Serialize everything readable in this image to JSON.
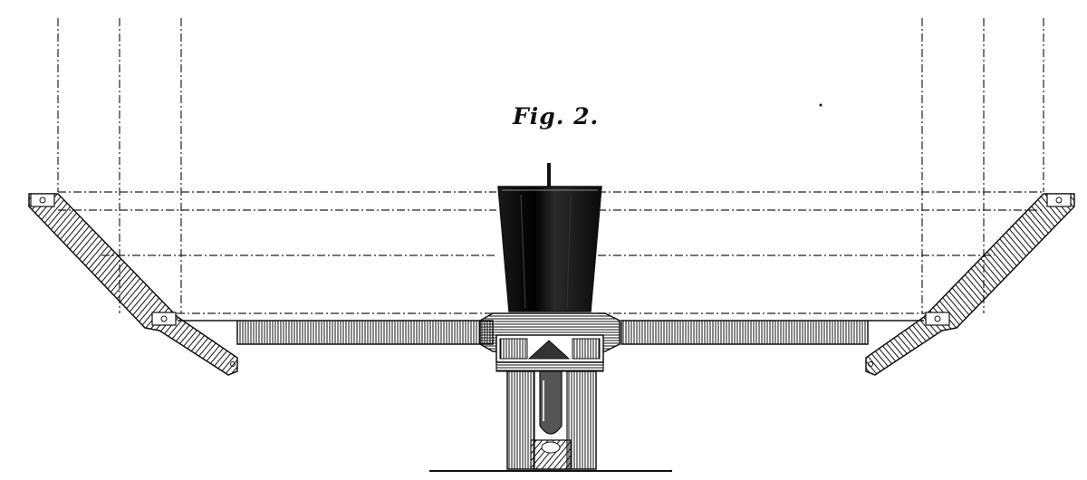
{
  "figure": {
    "label": "Fig. 2."
  },
  "colors": {
    "ink": "#111111",
    "paper": "#ffffff"
  }
}
